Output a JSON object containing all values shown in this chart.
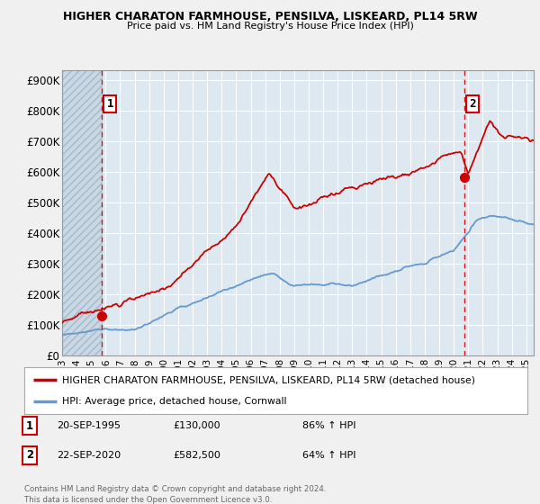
{
  "title": "HIGHER CHARATON FARMHOUSE, PENSILVA, LISKEARD, PL14 5RW",
  "subtitle": "Price paid vs. HM Land Registry's House Price Index (HPI)",
  "legend_line1": "HIGHER CHARATON FARMHOUSE, PENSILVA, LISKEARD, PL14 5RW (detached house)",
  "legend_line2": "HPI: Average price, detached house, Cornwall",
  "footnote": "Contains HM Land Registry data © Crown copyright and database right 2024.\nThis data is licensed under the Open Government Licence v3.0.",
  "sale1_x": 1995.72,
  "sale1_y": 130000,
  "sale2_x": 2020.72,
  "sale2_y": 582500,
  "sale1_label": "20-SEP-1995",
  "sale1_price": "£130,000",
  "sale1_hpi": "86% ↑ HPI",
  "sale2_label": "22-SEP-2020",
  "sale2_price": "£582,500",
  "sale2_hpi": "64% ↑ HPI",
  "property_color": "#cc0000",
  "hpi_color": "#6699cc",
  "background_color": "#f0f0f0",
  "plot_bg_color": "#dde8f0",
  "hatch_bg_color": "#dde8f0",
  "grid_color": "#ffffff",
  "ylim": [
    0,
    930000
  ],
  "xlim": [
    1993.0,
    2025.5
  ],
  "yticks": [
    0,
    100000,
    200000,
    300000,
    400000,
    500000,
    600000,
    700000,
    800000,
    900000
  ],
  "ytick_labels": [
    "£0",
    "£100K",
    "£200K",
    "£300K",
    "£400K",
    "£500K",
    "£600K",
    "£700K",
    "£800K",
    "£900K"
  ],
  "xtick_years": [
    1993,
    1994,
    1995,
    1996,
    1997,
    1998,
    1999,
    2000,
    2001,
    2002,
    2003,
    2004,
    2005,
    2006,
    2007,
    2008,
    2009,
    2010,
    2011,
    2012,
    2013,
    2014,
    2015,
    2016,
    2017,
    2018,
    2019,
    2020,
    2021,
    2022,
    2023,
    2024,
    2025
  ]
}
